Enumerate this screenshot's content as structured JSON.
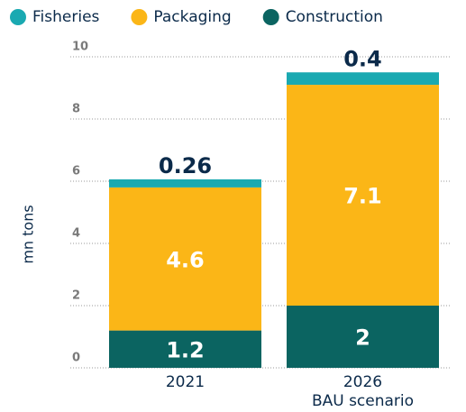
{
  "chart_data": {
    "type": "stacked_bar",
    "categories": [
      "2021",
      "2026"
    ],
    "category_notes": [
      null,
      "BAU scenario"
    ],
    "series": [
      {
        "name": "Fisheries",
        "color": "#1aa9b1",
        "values": [
          0.26,
          0.4
        ]
      },
      {
        "name": "Packaging",
        "color": "#fbb617",
        "values": [
          4.6,
          7.1
        ]
      },
      {
        "name": "Construction",
        "color": "#0b6461",
        "values": [
          1.2,
          2
        ]
      }
    ],
    "y_label": "mn tons",
    "ylim": [
      0,
      10
    ],
    "yticks": [
      0,
      2,
      4,
      6,
      8,
      10
    ],
    "grid": true,
    "legend": "top"
  }
}
